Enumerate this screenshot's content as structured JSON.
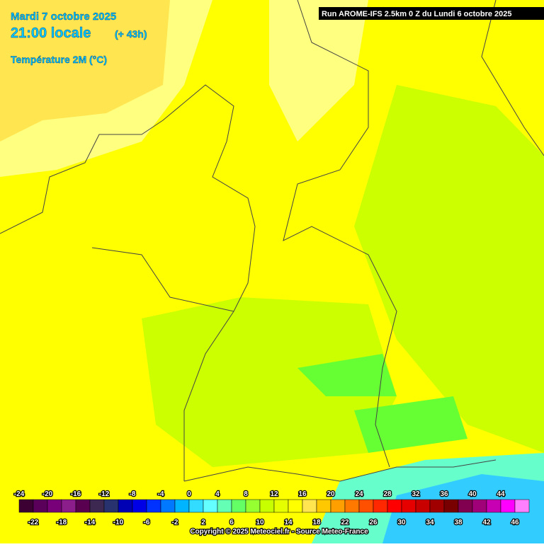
{
  "header": {
    "date": "Mardi 7 octobre 2025",
    "time": "21:00 locale",
    "lead": "(+ 43h)",
    "variable": "Température 2M (°C)",
    "run": "Run AROME-IFS 2.5km 0 Z du Lundi 6 octobre 2025"
  },
  "legend": {
    "values": [
      -24,
      -22,
      -20,
      -18,
      -16,
      -14,
      -12,
      -10,
      -8,
      -6,
      -4,
      -2,
      0,
      2,
      4,
      6,
      8,
      10,
      12,
      14,
      16,
      18,
      20,
      22,
      24,
      26,
      28,
      30,
      32,
      34,
      36,
      38,
      40,
      42,
      44,
      46
    ],
    "colors": [
      "#3c0032",
      "#5a005a",
      "#780078",
      "#8c1e8c",
      "#5a0050",
      "#3c2850",
      "#28326e",
      "#0000b4",
      "#0000e6",
      "#0032ff",
      "#0078ff",
      "#00b4ff",
      "#32dcff",
      "#64ffff",
      "#64ffb4",
      "#64ff64",
      "#96ff32",
      "#c8ff00",
      "#e6ff00",
      "#ffff00",
      "#ffe650",
      "#ffc800",
      "#ffa000",
      "#ff7800",
      "#ff5000",
      "#ff2800",
      "#ff0000",
      "#e60000",
      "#c80000",
      "#a00000",
      "#780000",
      "#820050",
      "#a00078",
      "#c800b4",
      "#ff00ff",
      "#ff80ff"
    ]
  },
  "copyright": "Copyright © 2025 Meteociel.fr - Source Meteo-France"
}
